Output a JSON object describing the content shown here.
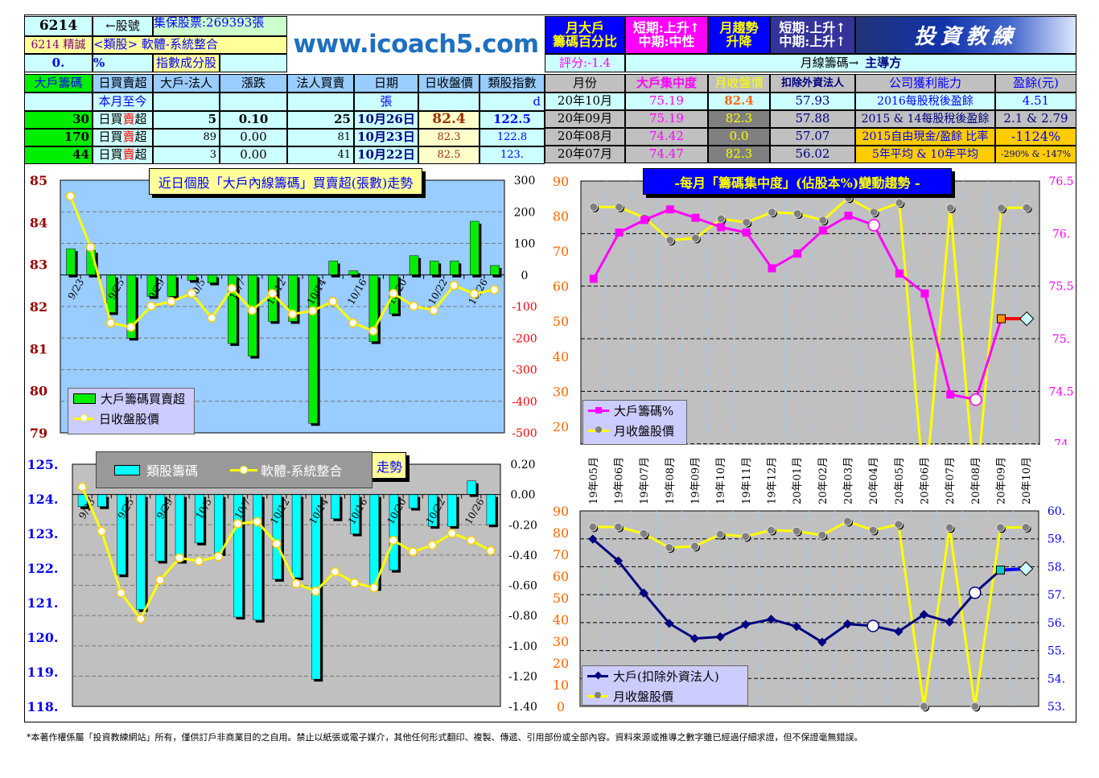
{
  "stock": {
    "code": "6214",
    "code_label": "←股號",
    "custody": "集保股票:269393張",
    "name": "6214 精誠",
    "sector": "<類股> 軟體-系統整合",
    "pct_value": "0.",
    "pct_unit": "%",
    "index_component": "指數成分股"
  },
  "website": "www.icoach5.com",
  "logo_text": "投資教練",
  "daily_table": {
    "headers": [
      "大戶籌碼",
      "日買賣超",
      "大戶-法人",
      "漲跌",
      "法人買賣",
      "日期",
      "日收盤價",
      "類股指數"
    ],
    "subheader": [
      "",
      "本月至今",
      "",
      "",
      "",
      "張",
      "",
      "d"
    ],
    "rows": [
      [
        "30",
        "日買賣超",
        "5",
        "0.10",
        "25",
        "10月26日",
        "82.4",
        "122.5"
      ],
      [
        "170",
        "日買賣超",
        "89",
        "0.00",
        "81",
        "10月23日",
        "82.3",
        "122.8"
      ],
      [
        "44",
        "日買賣超",
        "3",
        "0.00",
        "41",
        "10月22日",
        "82.5",
        "123."
      ]
    ]
  },
  "monthly_header": {
    "big_holder": [
      "月大戶",
      "籌碼百分比"
    ],
    "big_holder_trend": [
      "短期:上升↑",
      "中期:中性"
    ],
    "monthly_trend": [
      "月趨勢",
      "升降"
    ],
    "monthly_trend_value": [
      "短期:上升↑",
      "中期:上升↑"
    ],
    "score": "評分:-1.4",
    "monthly_chip": "月線籌碼→",
    "dominant": "主導方"
  },
  "monthly_table": {
    "headers": [
      "月份",
      "大戶集中度",
      "月收盤價",
      "扣除外資法人",
      "公司獲利能力",
      "盈餘(元)"
    ],
    "rows": [
      [
        "20年10月",
        "75.19",
        "82.4",
        "57.93",
        "2016每股稅後盈餘",
        "4.51"
      ],
      [
        "20年09月",
        "75.19",
        "82.3",
        "57.88",
        "2015 & 14每股稅後盈餘",
        "2.1 & 2.79"
      ],
      [
        "20年08月",
        "74.42",
        "0.0",
        "57.07",
        "2015自由現金/盈餘 比率",
        "-1124%"
      ],
      [
        "20年07月",
        "74.47",
        "82.3",
        "56.02",
        "5年平均 & 10年平均",
        "-290% & -147%"
      ]
    ]
  },
  "colors": {
    "green": "#00ee00",
    "cyan": "#00ffff",
    "yellow": "#ffff00",
    "magenta": "#ff00ff",
    "navy": "#000080",
    "orange": "#ff6600"
  },
  "chart_data": [
    {
      "type": "bar+line",
      "title": "近日個股「大戶內線籌碼」買賣超(張數)走勢",
      "x_tick_labels": [
        "",
        "9/23",
        "",
        "9/25",
        "",
        "9/29",
        "",
        "10/5",
        "",
        "10/7",
        "",
        "10/12",
        "",
        "10/14",
        "",
        "10/16",
        "",
        "10/20",
        "",
        "10/22",
        "",
        "10/26"
      ],
      "left_axis": {
        "range": [
          79,
          85
        ],
        "ticks": [
          "85",
          "84",
          "83",
          "82",
          "81",
          "80",
          "79"
        ]
      },
      "right_axis": {
        "range": [
          -500,
          300
        ],
        "ticks": [
          "300",
          "200",
          "100",
          "0",
          "-100",
          "-200",
          "-300",
          "-400",
          "-500"
        ]
      },
      "series": [
        {
          "name": "大戶籌碼買賣超",
          "kind": "bar",
          "axis": "right",
          "values": [
            83,
            78,
            -119,
            -200,
            -68,
            -68,
            -17,
            -25,
            -217,
            -257,
            -147,
            -147,
            -470,
            44,
            13,
            -211,
            -123,
            61,
            44,
            44,
            170,
            30
          ]
        },
        {
          "name": "日收盤股價",
          "kind": "line",
          "axis": "left",
          "values": [
            84.62,
            83.41,
            81.61,
            81.51,
            82.01,
            82.12,
            82.31,
            81.73,
            82.43,
            81.91,
            82.31,
            81.82,
            81.9,
            82.12,
            81.61,
            81.42,
            82.31,
            82.01,
            81.91,
            82.5,
            82.3,
            82.4
          ]
        }
      ],
      "grid": true,
      "legend": "bottom-left"
    },
    {
      "type": "line",
      "title": "-每月「籌碼集中度」(佔股本%)變動趨勢 -",
      "categories": [
        "19年05月",
        "19年06月",
        "19年07月",
        "19年08月",
        "19年09月",
        "19年10月",
        "19年11月",
        "19年12月",
        "20年01月",
        "20年02月",
        "20年03月",
        "20年04月",
        "20年05月",
        "20年06月",
        "20年07月",
        "20年08月",
        "20年09月",
        "20年10月"
      ],
      "left_axis": {
        "range": [
          0,
          90
        ],
        "ticks": [
          "90",
          "80",
          "70",
          "60",
          "50",
          "40",
          "30",
          "20"
        ]
      },
      "right_axis": {
        "range": [
          73.5,
          76.5
        ],
        "ticks": [
          "76.5",
          "76.",
          "75.5",
          "75.",
          "74.5",
          "74"
        ]
      },
      "series": [
        {
          "name": "大戶籌碼%",
          "axis": "right",
          "values": [
            75.57,
            76.01,
            76.13,
            76.23,
            76.15,
            76.06,
            76.01,
            75.67,
            75.81,
            76.03,
            76.17,
            76.08,
            75.62,
            75.43,
            74.47,
            74.42,
            75.19,
            75.19
          ]
        },
        {
          "name": "月收盤股價",
          "axis": "left",
          "values": [
            82.6,
            82.6,
            79.5,
            73.1,
            73.7,
            79.2,
            78.2,
            81.1,
            80.7,
            78.8,
            85.2,
            81.1,
            83.8,
            0,
            82.3,
            0,
            82.3,
            82.4
          ]
        }
      ],
      "grid": true,
      "legend": "bottom-left"
    },
    {
      "type": "bar+line",
      "title": "走勢",
      "x_tick_labels": [
        "",
        "9/23",
        "",
        "9/25",
        "",
        "9/29",
        "",
        "10/5",
        "",
        "10/7",
        "",
        "10/12",
        "",
        "10/14",
        "",
        "10/16",
        "",
        "10/20",
        "",
        "10/22",
        "",
        "10/26"
      ],
      "left_axis": {
        "range": [
          118,
          125
        ],
        "ticks": [
          "125.",
          "124.",
          "123.",
          "122.",
          "121.",
          "120.",
          "119.",
          "118."
        ]
      },
      "right_axis": {
        "range": [
          -1.4,
          0.2
        ],
        "ticks": [
          "0.20",
          "0.00",
          "-0.20",
          "-0.40",
          "-0.60",
          "-0.80",
          "-1.00",
          "-1.20",
          "-1.40"
        ]
      },
      "series": [
        {
          "name": "類股籌碼",
          "kind": "bar",
          "axis": "right",
          "values": [
            -0.08,
            -0.08,
            -0.53,
            -0.76,
            -0.44,
            -0.44,
            -0.32,
            -0.39,
            -0.81,
            -0.83,
            -0.56,
            -0.55,
            -1.22,
            -0.16,
            -0.26,
            -0.62,
            -0.5,
            -0.09,
            -0.21,
            -0.21,
            0.09,
            -0.2
          ]
        },
        {
          "name": "軟體-系統整合",
          "kind": "line",
          "axis": "left",
          "values": [
            124.34,
            123.06,
            121.28,
            120.53,
            121.65,
            122.29,
            122.2,
            122.33,
            123.28,
            123.34,
            122.7,
            121.55,
            121.33,
            121.89,
            121.57,
            121.43,
            122.8,
            122.47,
            122.66,
            123.0,
            122.8,
            122.5
          ]
        }
      ],
      "grid": true,
      "legend": "top"
    },
    {
      "type": "line",
      "categories": [
        "19年05月",
        "19年06月",
        "19年07月",
        "19年08月",
        "19年09月",
        "19年10月",
        "19年11月",
        "19年12月",
        "20年01月",
        "20年02月",
        "20年03月",
        "20年04月",
        "20年05月",
        "20年06月",
        "20年07月",
        "20年08月",
        "20年09月",
        "20年10月"
      ],
      "left_axis": {
        "range": [
          0,
          90
        ],
        "ticks": [
          "90",
          "80",
          "70",
          "60",
          "50",
          "40",
          "30",
          "20",
          "10",
          "0"
        ]
      },
      "right_axis": {
        "range": [
          53,
          60
        ],
        "ticks": [
          "60.",
          "59.",
          "58.",
          "57.",
          "56.",
          "55.",
          "54.",
          "53."
        ]
      },
      "series": [
        {
          "name": "大戶(扣除外資法人)",
          "axis": "right",
          "values": [
            58.99,
            58.21,
            57.06,
            55.97,
            55.43,
            55.49,
            55.93,
            56.12,
            55.86,
            55.3,
            55.95,
            55.88,
            55.68,
            56.29,
            56.02,
            57.07,
            57.88,
            57.93
          ]
        },
        {
          "name": "月收盤股價",
          "axis": "left",
          "values": [
            82.6,
            82.6,
            79.5,
            73.1,
            73.7,
            79.2,
            78.2,
            81.1,
            80.7,
            78.8,
            85.2,
            81.1,
            83.8,
            0,
            82.3,
            0,
            82.3,
            82.4
          ]
        }
      ],
      "grid": true,
      "legend": "bottom-left"
    }
  ],
  "footer": "*本著作權係屬「投資教練網站」所有，僅供訂戶非商業目的之自用。禁止以紙張或電子媒介，其他任何形式翻印、複製、傳遞、引用部份或全部內容。資料來源或推導之數字雖已經過仔細求證，但不保證毫無錯誤。"
}
